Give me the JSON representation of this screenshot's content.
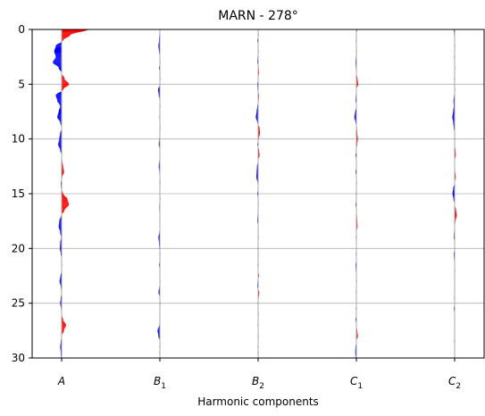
{
  "chart_data": {
    "type": "area",
    "title": "MARN - 278°",
    "xlabel": "Harmonic components",
    "ylabel": "",
    "ylim": [
      0,
      30
    ],
    "y_inverted": true,
    "yticks": [
      "0",
      "5",
      "10",
      "15",
      "20",
      "25",
      "30"
    ],
    "ytick_values": [
      0,
      5,
      10,
      15,
      20,
      25,
      30
    ],
    "grid": "horizontal",
    "positive_color": "#ff0000",
    "negative_color": "#0000ff",
    "trace_color": "#aaaaaa",
    "categories": [
      {
        "main": "A",
        "sub": ""
      },
      {
        "main": "B",
        "sub": "1"
      },
      {
        "main": "B",
        "sub": "2"
      },
      {
        "main": "C",
        "sub": "1"
      },
      {
        "main": "C",
        "sub": "2"
      }
    ],
    "series": [
      {
        "depth": [
          0,
          0.5,
          1,
          1.5,
          2,
          2.5,
          3,
          3.5,
          4,
          4.5,
          5,
          5.5,
          6,
          6.5,
          7,
          7.5,
          8,
          8.5,
          9,
          9.5,
          10,
          10.5,
          11,
          11.5,
          12,
          12.5,
          13,
          13.5,
          14,
          14.5,
          15,
          15.5,
          16,
          16.5,
          17,
          17.5,
          18,
          18.5,
          19,
          19.5,
          20,
          20.5,
          21,
          21.5,
          22,
          22.5,
          23,
          23.5,
          24,
          24.5,
          25,
          25.5,
          26,
          26.5,
          27,
          27.5,
          28,
          28.5,
          29,
          29.5,
          30
        ],
        "amplitude": [
          0.9,
          0.3,
          0.05,
          -0.2,
          -0.25,
          -0.2,
          -0.3,
          -0.1,
          0.0,
          0.1,
          0.25,
          0.05,
          -0.2,
          -0.15,
          -0.05,
          -0.1,
          -0.15,
          -0.05,
          0.0,
          -0.05,
          -0.08,
          -0.12,
          -0.05,
          0.0,
          0.02,
          0.05,
          0.08,
          0.02,
          -0.03,
          -0.02,
          0.05,
          0.2,
          0.25,
          0.1,
          -0.02,
          -0.08,
          -0.1,
          -0.05,
          -0.02,
          -0.05,
          -0.06,
          -0.03,
          0.0,
          0.02,
          0.0,
          -0.04,
          -0.07,
          -0.03,
          0.0,
          -0.03,
          -0.05,
          -0.02,
          0.0,
          0.05,
          0.15,
          0.08,
          0.0,
          -0.03,
          -0.05,
          -0.03,
          -0.02
        ]
      },
      {
        "depth": [
          0,
          0.5,
          1,
          1.5,
          2,
          2.5,
          3,
          3.5,
          4,
          4.5,
          5,
          5.5,
          6,
          6.5,
          7,
          7.5,
          8,
          8.5,
          9,
          9.5,
          10,
          10.5,
          11,
          11.5,
          12,
          12.5,
          13,
          13.5,
          14,
          14.5,
          15,
          15.5,
          16,
          16.5,
          17,
          17.5,
          18,
          18.5,
          19,
          19.5,
          20,
          20.5,
          21,
          21.5,
          22,
          22.5,
          23,
          23.5,
          24,
          24.5,
          25,
          25.5,
          26,
          26.5,
          27,
          27.5,
          28,
          28.5,
          29,
          29.5,
          30
        ],
        "amplitude": [
          0.0,
          -0.02,
          -0.03,
          -0.05,
          -0.03,
          0.0,
          0.02,
          -0.03,
          0.0,
          0.02,
          0.0,
          -0.06,
          -0.04,
          0.0,
          0.02,
          0.0,
          -0.02,
          0.0,
          0.02,
          0.0,
          -0.02,
          -0.04,
          0.0,
          0.0,
          -0.02,
          -0.04,
          -0.02,
          0.0,
          0.02,
          0.0,
          0.0,
          0.02,
          -0.02,
          -0.02,
          0.0,
          0.0,
          0.0,
          -0.02,
          -0.05,
          -0.03,
          -0.02,
          0.02,
          0.0,
          -0.03,
          0.0,
          0.0,
          0.02,
          -0.02,
          -0.05,
          0.0,
          0.02,
          0.0,
          0.0,
          0.0,
          -0.02,
          -0.08,
          -0.05,
          0.0,
          0.02,
          -0.02,
          0.0
        ]
      },
      {
        "depth": [
          0,
          0.5,
          1,
          1.5,
          2,
          2.5,
          3,
          3.5,
          4,
          4.5,
          5,
          5.5,
          6,
          6.5,
          7,
          7.5,
          8,
          8.5,
          9,
          9.5,
          10,
          10.5,
          11,
          11.5,
          12,
          12.5,
          13,
          13.5,
          14,
          14.5,
          15,
          15.5,
          16,
          16.5,
          17,
          17.5,
          18,
          18.5,
          19,
          19.5,
          20,
          20.5,
          21,
          21.5,
          22,
          22.5,
          23,
          23.5,
          24,
          24.5,
          25,
          25.5,
          26,
          26.5,
          27,
          27.5,
          28,
          28.5,
          29,
          29.5,
          30
        ],
        "amplitude": [
          0.0,
          0.02,
          -0.03,
          0.0,
          0.02,
          -0.02,
          -0.03,
          0.02,
          0.03,
          0.0,
          -0.03,
          -0.02,
          0.03,
          0.02,
          -0.03,
          -0.05,
          -0.08,
          -0.03,
          0.05,
          0.06,
          0.02,
          -0.03,
          0.03,
          0.05,
          0.0,
          -0.04,
          -0.05,
          -0.06,
          -0.02,
          0.0,
          -0.03,
          0.0,
          0.02,
          0.0,
          -0.02,
          -0.03,
          0.0,
          0.0,
          0.02,
          0.0,
          -0.02,
          0.02,
          0.0,
          -0.02,
          0.0,
          0.03,
          -0.02,
          -0.03,
          0.04,
          0.02,
          -0.02,
          0.0,
          0.02,
          0.0,
          -0.02,
          0.0,
          0.02,
          0.0,
          -0.02,
          0.02,
          0.0
        ]
      },
      {
        "depth": [
          0,
          0.5,
          1,
          1.5,
          2,
          2.5,
          3,
          3.5,
          4,
          4.5,
          5,
          5.5,
          6,
          6.5,
          7,
          7.5,
          8,
          8.5,
          9,
          9.5,
          10,
          10.5,
          11,
          11.5,
          12,
          12.5,
          13,
          13.5,
          14,
          14.5,
          15,
          15.5,
          16,
          16.5,
          17,
          17.5,
          18,
          18.5,
          19,
          19.5,
          20,
          20.5,
          21,
          21.5,
          22,
          22.5,
          23,
          23.5,
          24,
          24.5,
          25,
          25.5,
          26,
          26.5,
          27,
          27.5,
          28,
          28.5,
          29,
          29.5,
          30
        ],
        "amplitude": [
          0.03,
          0.0,
          -0.02,
          0.0,
          0.02,
          -0.02,
          -0.03,
          -0.02,
          0.0,
          0.04,
          0.06,
          0.0,
          -0.02,
          -0.03,
          0.0,
          -0.04,
          -0.07,
          -0.03,
          0.02,
          0.03,
          0.05,
          0.03,
          0.0,
          -0.03,
          0.0,
          0.0,
          -0.03,
          0.0,
          0.02,
          0.0,
          -0.02,
          0.0,
          -0.03,
          0.0,
          0.02,
          0.03,
          0.04,
          0.0,
          -0.02,
          0.0,
          0.0,
          -0.02,
          0.0,
          -0.03,
          -0.02,
          0.0,
          0.02,
          0.0,
          -0.02,
          0.0,
          0.0,
          -0.02,
          0.0,
          -0.03,
          0.0,
          0.03,
          0.05,
          0.0,
          -0.03,
          -0.04,
          -0.02
        ]
      },
      {
        "depth": [
          0,
          0.5,
          1,
          1.5,
          2,
          2.5,
          3,
          3.5,
          4,
          4.5,
          5,
          5.5,
          6,
          6.5,
          7,
          7.5,
          8,
          8.5,
          9,
          9.5,
          10,
          10.5,
          11,
          11.5,
          12,
          12.5,
          13,
          13.5,
          14,
          14.5,
          15,
          15.5,
          16,
          16.5,
          17,
          17.5,
          18,
          18.5,
          19,
          19.5,
          20,
          20.5,
          21,
          21.5,
          22,
          22.5,
          23,
          23.5,
          24,
          24.5,
          25,
          25.5,
          26,
          26.5,
          27,
          27.5,
          28,
          28.5,
          29,
          29.5,
          30
        ],
        "amplitude": [
          -0.03,
          -0.02,
          0.0,
          0.02,
          0.0,
          -0.02,
          0.0,
          0.02,
          0.0,
          -0.02,
          0.0,
          0.02,
          -0.02,
          -0.04,
          -0.03,
          -0.05,
          -0.08,
          -0.05,
          -0.03,
          0.0,
          0.02,
          0.0,
          0.03,
          0.04,
          0.0,
          0.0,
          0.02,
          0.04,
          0.0,
          -0.05,
          -0.07,
          -0.04,
          0.0,
          0.05,
          0.07,
          0.03,
          0.0,
          -0.02,
          -0.03,
          0.0,
          0.0,
          -0.03,
          -0.02,
          0.0,
          0.02,
          0.0,
          0.0,
          0.0,
          0.0,
          -0.02,
          0.0,
          -0.03,
          0.0,
          0.0,
          0.0,
          0.0,
          0.0,
          -0.02,
          0.0,
          0.0,
          0.0
        ]
      }
    ]
  }
}
